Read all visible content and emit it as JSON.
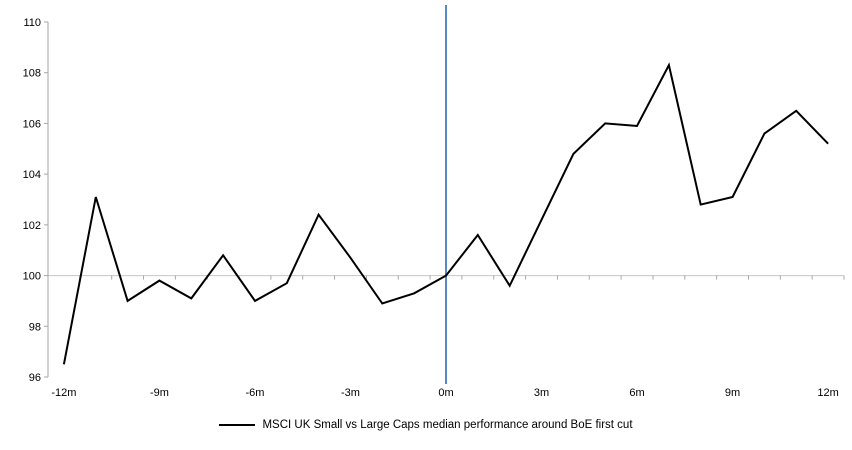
{
  "chart_data": {
    "type": "line",
    "series": [
      {
        "name": "MSCI UK Small vs Large Caps median performance around BoE first cut",
        "color": "#000000",
        "x": [
          -12,
          -11,
          -10,
          -9,
          -8,
          -7,
          -6,
          -5,
          -4,
          -3,
          -2,
          -1,
          0,
          1,
          2,
          3,
          4,
          5,
          6,
          7,
          8,
          9,
          10,
          11,
          12
        ],
        "values": [
          96.5,
          103.1,
          99.0,
          99.8,
          99.1,
          100.8,
          99.0,
          99.7,
          102.4,
          100.7,
          98.9,
          99.3,
          100.0,
          101.6,
          99.6,
          102.2,
          104.8,
          106.0,
          105.9,
          108.3,
          102.8,
          103.1,
          105.6,
          106.5,
          105.2
        ]
      }
    ],
    "xlim": [
      -12.5,
      12.5
    ],
    "ylim": [
      96,
      110
    ],
    "y_ticks": [
      96,
      98,
      100,
      102,
      104,
      106,
      108,
      110
    ],
    "y_tick_labels": [
      "96",
      "98",
      "100",
      "102",
      "104",
      "106",
      "108",
      "110"
    ],
    "x_ticks": [
      {
        "value": -12,
        "label": "-12m"
      },
      {
        "value": -9,
        "label": "-9m"
      },
      {
        "value": -6,
        "label": "-6m"
      },
      {
        "value": -3,
        "label": "-3m"
      },
      {
        "value": 0,
        "label": "0m"
      },
      {
        "value": 3,
        "label": "3m"
      },
      {
        "value": 6,
        "label": "6m"
      },
      {
        "value": 9,
        "label": "9m"
      },
      {
        "value": 12,
        "label": "12m"
      }
    ],
    "baseline": 100,
    "event_line": {
      "x": 0,
      "color": "#5588c5"
    },
    "colors": {
      "axis": "#a6a6a6",
      "baseline": "#c6c6c6"
    },
    "grid": "baseline-only",
    "legend_position": "bottom"
  }
}
